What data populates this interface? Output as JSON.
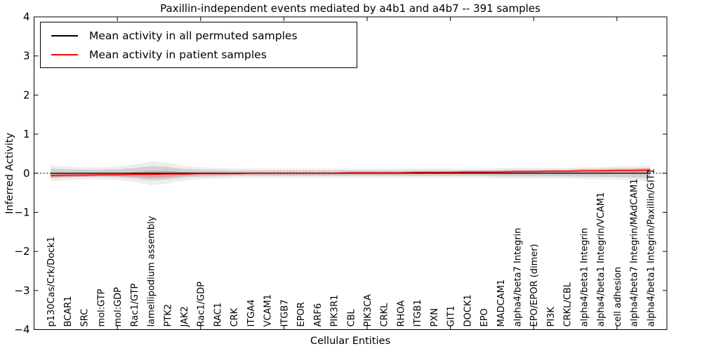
{
  "figure": {
    "title": "Paxillin-independent events mediated by a4b1 and a4b7 -- 391 samples",
    "xlabel": "Cellular Entities",
    "ylabel": "Inferred Activity"
  },
  "legend": {
    "entries": [
      {
        "label": "Mean activity in all permuted samples",
        "color": "#000000"
      },
      {
        "label": "Mean activity in patient samples",
        "color": "#ff0000"
      }
    ]
  },
  "colors": {
    "permuted_line": "#000000",
    "patient_line": "#ff0000",
    "permuted_band": "rgba(110,110,110,0.22)",
    "permuted_band_outer": "rgba(110,110,110,0.12)",
    "patient_band": "rgba(255,0,0,0.22)",
    "zero_line": "#000000",
    "spine": "#000000"
  },
  "chart_data": {
    "type": "line",
    "title": "Paxillin-independent events mediated by a4b1 and a4b7 -- 391 samples",
    "xlabel": "Cellular Entities",
    "ylabel": "Inferred Activity",
    "ylim": [
      -4,
      4
    ],
    "yticks": [
      -4,
      -3,
      -2,
      -1,
      0,
      1,
      2,
      3,
      4
    ],
    "grid": false,
    "legend_position": "upper left",
    "zero_line": {
      "y": 0,
      "style": "dotted"
    },
    "x_major_tick_step": 5,
    "categories": [
      "p130Cas/Crk/Dock1",
      "BCAR1",
      "SRC",
      "mol:GTP",
      "mol:GDP",
      "Rac1/GTP",
      "lamellipodium assembly",
      "PTK2",
      "JAK2",
      "Rac1/GDP",
      "RAC1",
      "CRK",
      "ITGA4",
      "VCAM1",
      "ITGB7",
      "EPOR",
      "ARF6",
      "PIK3R1",
      "CBL",
      "PIK3CA",
      "CRKL",
      "RHOA",
      "ITGB1",
      "PXN",
      "GIT1",
      "DOCK1",
      "EPO",
      "MADCAM1",
      "alpha4/beta7 Integrin",
      "EPO/EPOR (dimer)",
      "PI3K",
      "CRKL/CBL",
      "alpha4/beta1 Integrin",
      "alpha4/beta1 Integrin/VCAM1",
      "cell adhesion",
      "alpha4/beta7 Integrin/MAdCAM1",
      "alpha4/beta1 Integrin/Paxillin/GIT1"
    ],
    "series": [
      {
        "name": "Mean activity in all permuted samples",
        "color": "#000000",
        "values": [
          0,
          0,
          0,
          0,
          0,
          0,
          0,
          0,
          0,
          0,
          0,
          0,
          0,
          0,
          0,
          0,
          0,
          0,
          0,
          0,
          0,
          0,
          0,
          0,
          0,
          0,
          0,
          0,
          0,
          0,
          0,
          0,
          0,
          0,
          0,
          0,
          0
        ],
        "band_halfwidth": [
          0.12,
          0.1,
          0.09,
          0.09,
          0.1,
          0.13,
          0.18,
          0.16,
          0.11,
          0.09,
          0.08,
          0.07,
          0.07,
          0.07,
          0.07,
          0.07,
          0.07,
          0.07,
          0.07,
          0.07,
          0.07,
          0.07,
          0.07,
          0.07,
          0.07,
          0.07,
          0.07,
          0.08,
          0.08,
          0.08,
          0.08,
          0.08,
          0.09,
          0.09,
          0.1,
          0.11,
          0.12
        ]
      },
      {
        "name": "Mean activity in patient samples",
        "color": "#ff0000",
        "values": [
          -0.06,
          -0.05,
          -0.05,
          -0.04,
          -0.04,
          -0.03,
          -0.03,
          -0.02,
          -0.02,
          -0.01,
          -0.01,
          -0.01,
          0,
          0,
          0,
          0,
          0,
          0,
          0.01,
          0.01,
          0.01,
          0.01,
          0.02,
          0.02,
          0.02,
          0.03,
          0.03,
          0.03,
          0.04,
          0.04,
          0.05,
          0.05,
          0.06,
          0.06,
          0.07,
          0.07,
          0.08
        ],
        "band_halfwidth": [
          0.05,
          0.05,
          0.04,
          0.04,
          0.04,
          0.06,
          0.09,
          0.08,
          0.05,
          0.04,
          0.04,
          0.03,
          0.03,
          0.03,
          0.03,
          0.03,
          0.03,
          0.03,
          0.03,
          0.03,
          0.03,
          0.03,
          0.03,
          0.03,
          0.03,
          0.03,
          0.03,
          0.04,
          0.04,
          0.04,
          0.04,
          0.04,
          0.05,
          0.05,
          0.05,
          0.05,
          0.06
        ]
      }
    ]
  }
}
